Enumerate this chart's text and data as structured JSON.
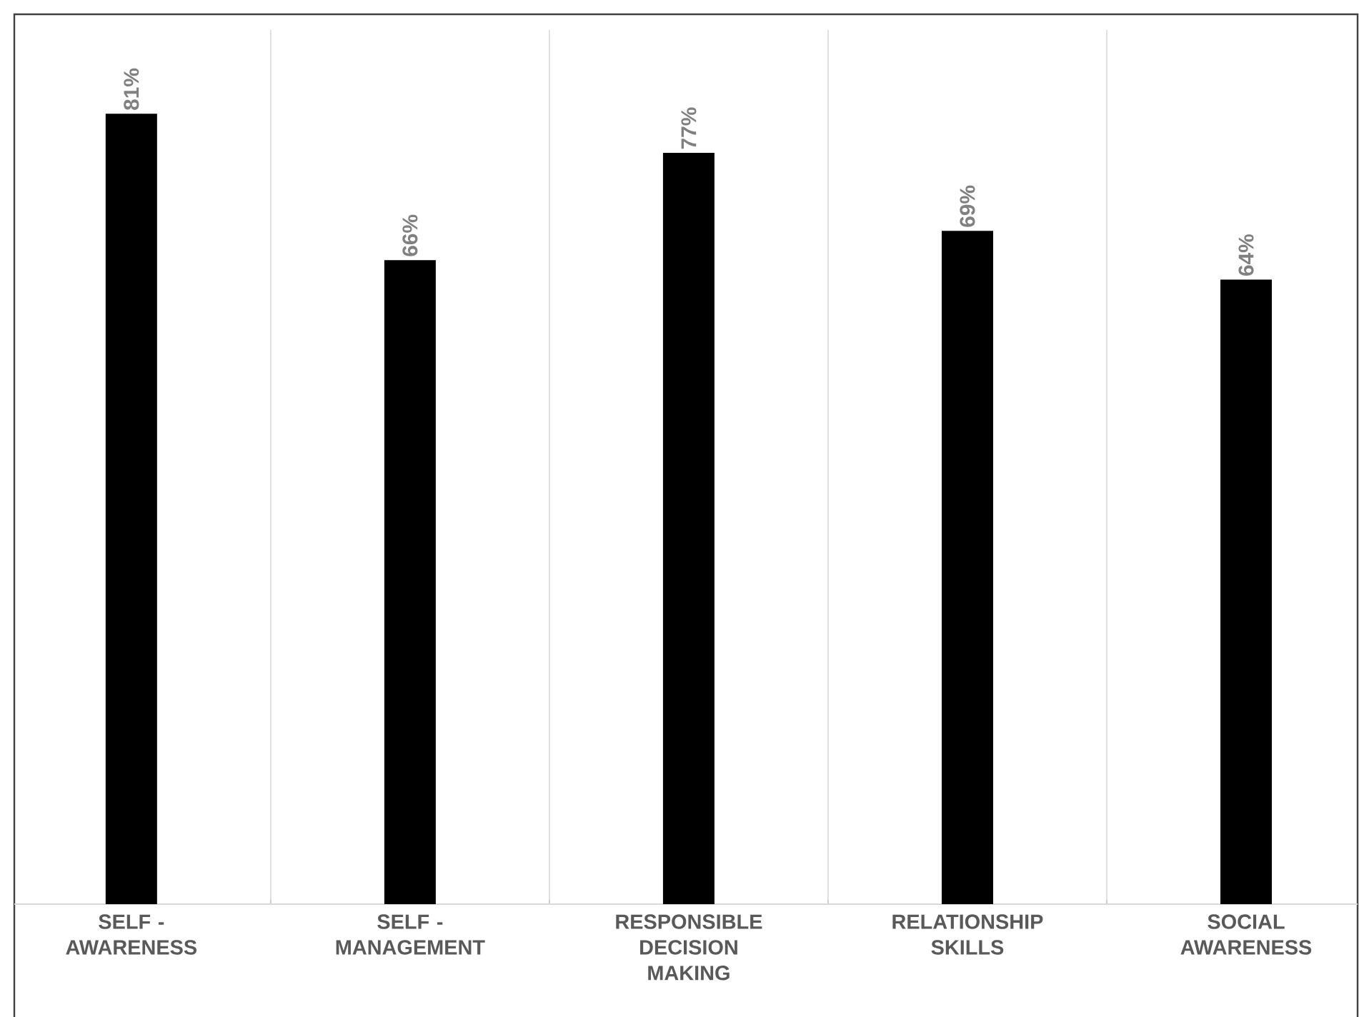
{
  "chart_data": {
    "type": "bar",
    "categories": [
      "SELF - AWARENESS",
      "SELF - MANAGEMENT",
      "RESPONSIBLE DECISION MAKING",
      "RELATIONSHIP SKILLS",
      "SOCIAL AWARENESS"
    ],
    "values": [
      81,
      66,
      77,
      69,
      64
    ],
    "value_labels": [
      "81%",
      "66%",
      "77%",
      "69%",
      "64%"
    ],
    "color": "#000000",
    "grid": "x"
  }
}
